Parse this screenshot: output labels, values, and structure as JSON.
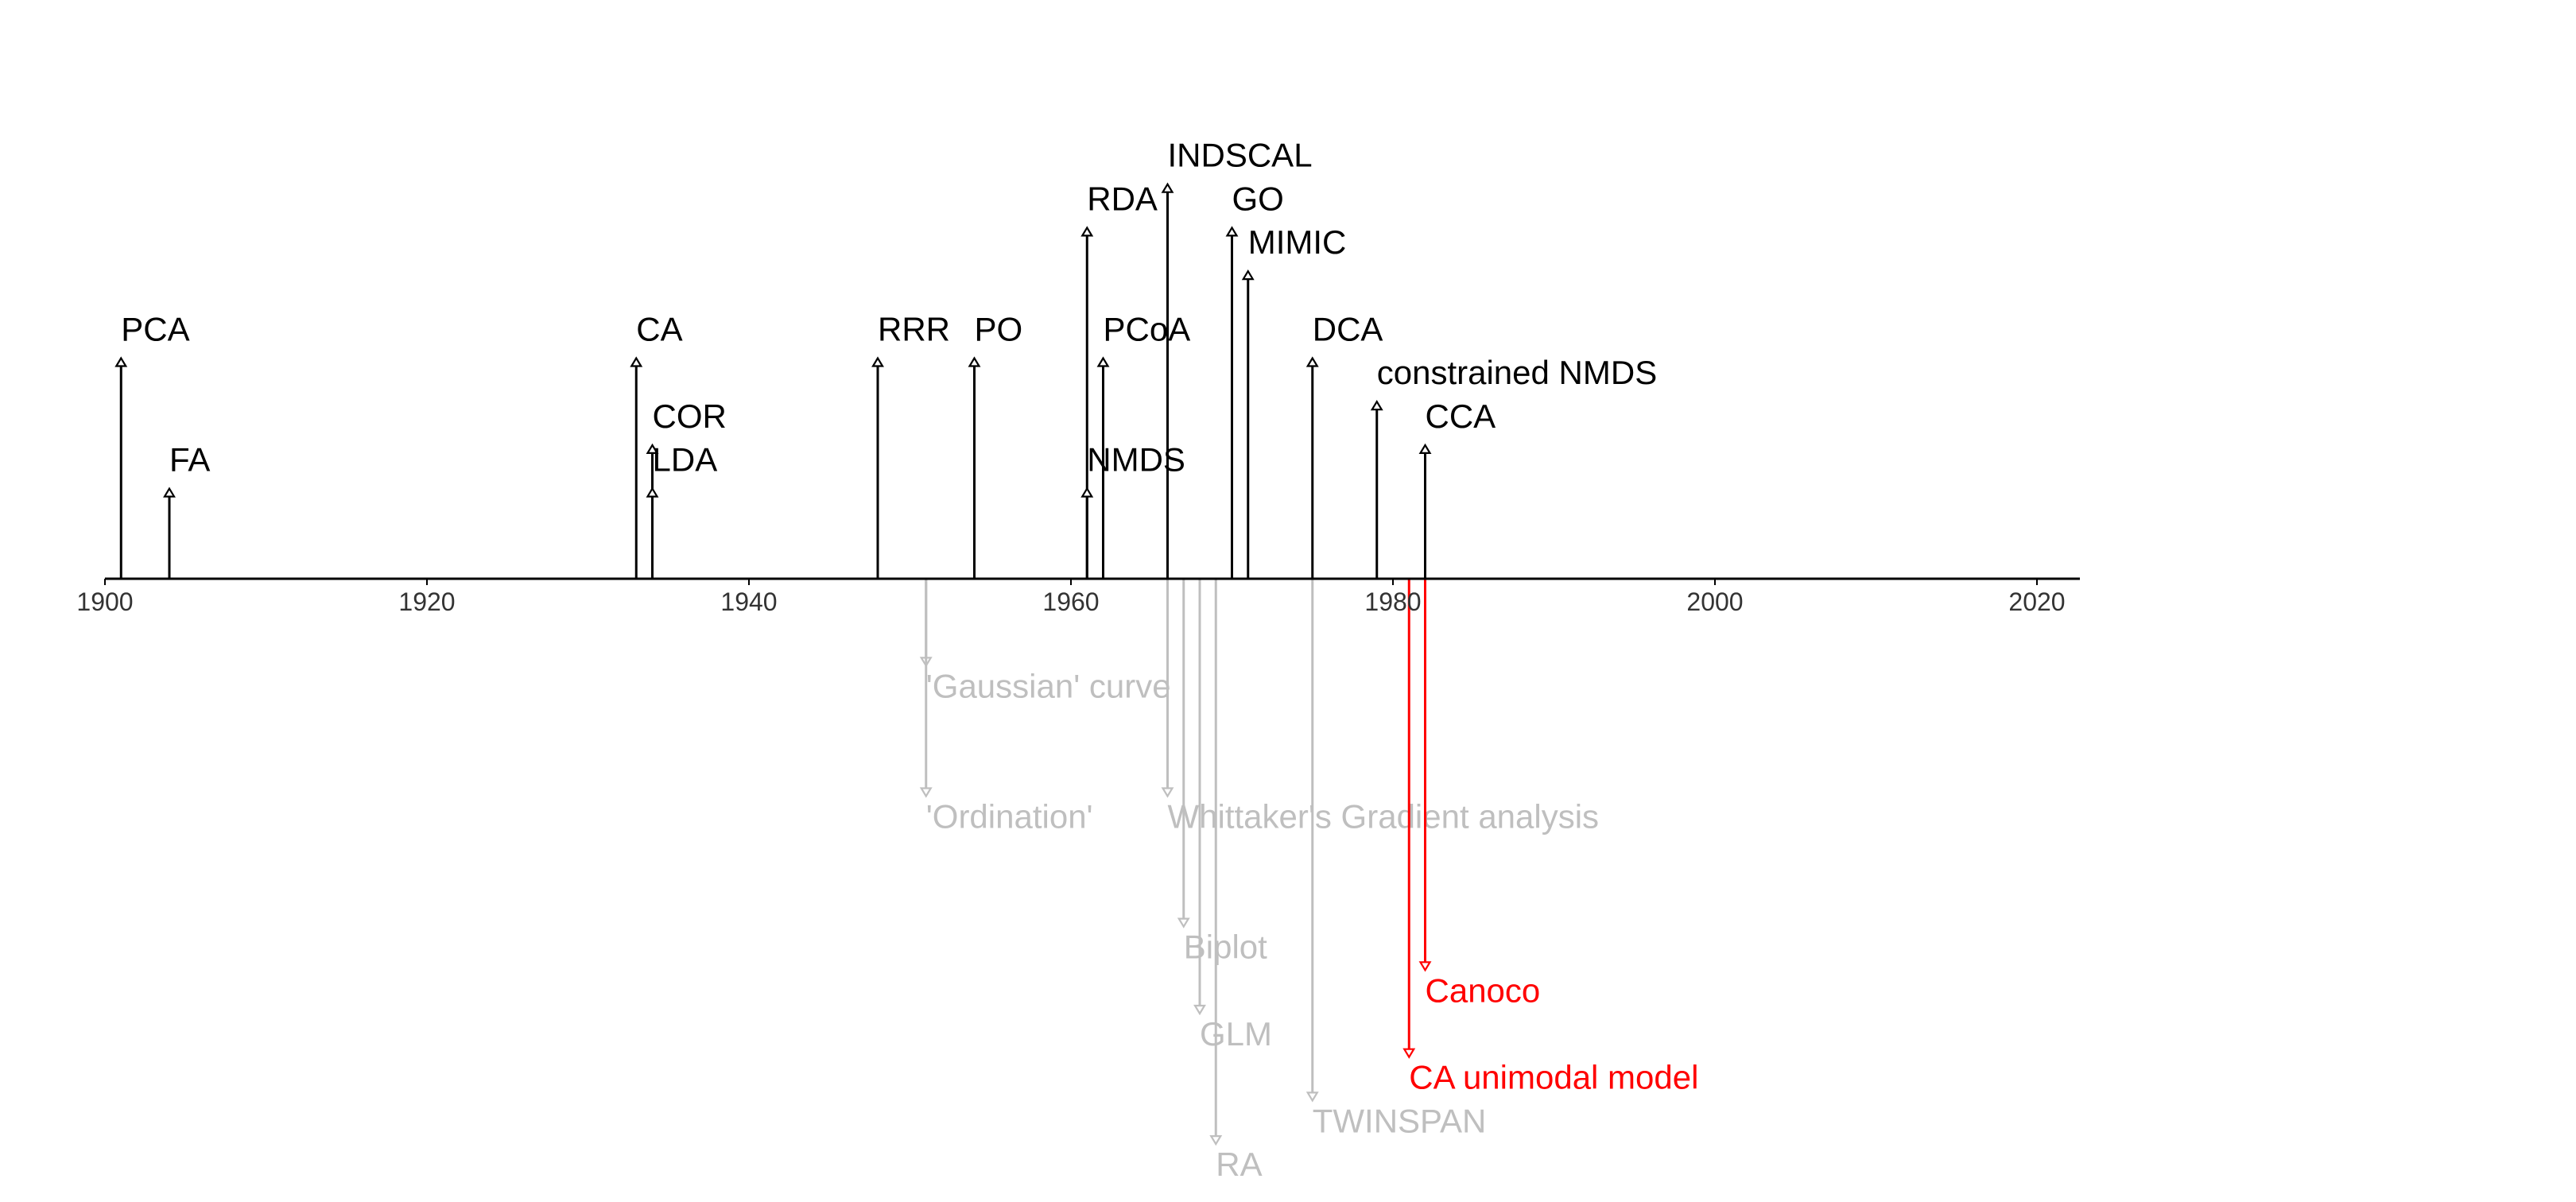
{
  "chart_data": {
    "type": "timeline",
    "title": "",
    "xlabel": "",
    "ylabel": "",
    "xlim": [
      1899,
      2023
    ],
    "x_ticks": [
      1900,
      1920,
      1940,
      1960,
      1980,
      2000,
      2020
    ],
    "grid": false,
    "legend": "none",
    "colors": {
      "above": "#000000",
      "below_gray": "#bfbfbf",
      "below_red": "#ff0000",
      "axis": "#000000"
    },
    "events_above": [
      {
        "label": "PCA",
        "year": 1901,
        "level": 5
      },
      {
        "label": "FA",
        "year": 1904,
        "level": 2
      },
      {
        "label": "CA",
        "year": 1933,
        "level": 5
      },
      {
        "label": "COR",
        "year": 1934,
        "level": 3
      },
      {
        "label": "LDA",
        "year": 1934,
        "level": 2
      },
      {
        "label": "RRR",
        "year": 1948,
        "level": 5
      },
      {
        "label": "PO",
        "year": 1954,
        "level": 5
      },
      {
        "label": "RDA",
        "year": 1961,
        "level": 8
      },
      {
        "label": "NMDS",
        "year": 1961,
        "level": 2
      },
      {
        "label": "PCoA",
        "year": 1962,
        "level": 5
      },
      {
        "label": "INDSCAL",
        "year": 1966,
        "level": 9
      },
      {
        "label": "GO",
        "year": 1970,
        "level": 8
      },
      {
        "label": "MIMIC",
        "year": 1971,
        "level": 7
      },
      {
        "label": "DCA",
        "year": 1975,
        "level": 5
      },
      {
        "label": "constrained NMDS",
        "year": 1979,
        "level": 4
      },
      {
        "label": "CCA",
        "year": 1982,
        "level": 3
      }
    ],
    "events_below": [
      {
        "label": "'Gaussian' curve",
        "year": 1951,
        "level": 2,
        "group": "gray"
      },
      {
        "label": "'Ordination'",
        "year": 1951,
        "level": 5,
        "group": "gray"
      },
      {
        "label": "Whittaker's Gradient analysis",
        "year": 1966,
        "level": 5,
        "group": "gray"
      },
      {
        "label": "Biplot",
        "year": 1967,
        "level": 8,
        "group": "gray"
      },
      {
        "label": "GLM",
        "year": 1968,
        "level": 10,
        "group": "gray"
      },
      {
        "label": "RA",
        "year": 1969,
        "level": 13,
        "group": "gray"
      },
      {
        "label": "TWINSPAN",
        "year": 1975,
        "level": 12,
        "group": "gray"
      },
      {
        "label": "Canoco",
        "year": 1982,
        "level": 9,
        "group": "red"
      },
      {
        "label": "CA unimodal model",
        "year": 1981,
        "level": 11,
        "group": "red"
      }
    ]
  }
}
